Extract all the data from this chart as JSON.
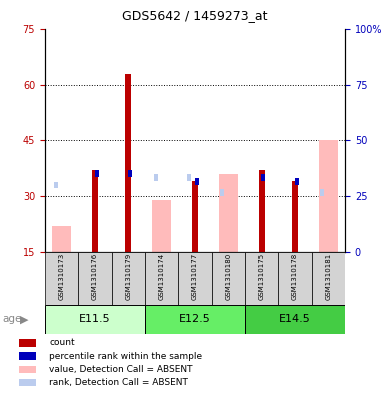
{
  "title": "GDS5642 / 1459273_at",
  "samples": [
    "GSM1310173",
    "GSM1310176",
    "GSM1310179",
    "GSM1310174",
    "GSM1310177",
    "GSM1310180",
    "GSM1310175",
    "GSM1310178",
    "GSM1310181"
  ],
  "age_groups": [
    {
      "label": "E11.5",
      "indices": [
        0,
        1,
        2
      ]
    },
    {
      "label": "E12.5",
      "indices": [
        3,
        4,
        5
      ]
    },
    {
      "label": "E14.5",
      "indices": [
        6,
        7,
        8
      ]
    }
  ],
  "age_colors": [
    "#ccffcc",
    "#66ee66",
    "#44cc44"
  ],
  "red_bar_tops": [
    0,
    37,
    63,
    0,
    34,
    0,
    37,
    34,
    0
  ],
  "blue_square_y": [
    0,
    36,
    36,
    0,
    34,
    0,
    35,
    34,
    0
  ],
  "pink_bar_tops": [
    22,
    0,
    0,
    29,
    0,
    36,
    0,
    0,
    45
  ],
  "lavender_y": [
    33,
    0,
    0,
    35,
    35,
    31,
    0,
    0,
    31
  ],
  "ylim_left": [
    15,
    75
  ],
  "ylim_right": [
    0,
    100
  ],
  "yticks_left": [
    15,
    30,
    45,
    60,
    75
  ],
  "yticks_right": [
    0,
    25,
    50,
    75,
    100
  ],
  "red_color": "#bb0000",
  "blue_color": "#0000bb",
  "pink_color": "#ffbbbb",
  "lavender_color": "#bbccee",
  "title_fontsize": 9,
  "tick_fontsize": 7,
  "sample_fontsize": 5,
  "age_fontsize": 8,
  "legend_fontsize": 6.5,
  "legend_items": [
    {
      "label": "count",
      "color": "#bb0000"
    },
    {
      "label": "percentile rank within the sample",
      "color": "#0000bb"
    },
    {
      "label": "value, Detection Call = ABSENT",
      "color": "#ffbbbb"
    },
    {
      "label": "rank, Detection Call = ABSENT",
      "color": "#bbccee"
    }
  ],
  "figsize": [
    3.9,
    3.93
  ],
  "dpi": 100
}
